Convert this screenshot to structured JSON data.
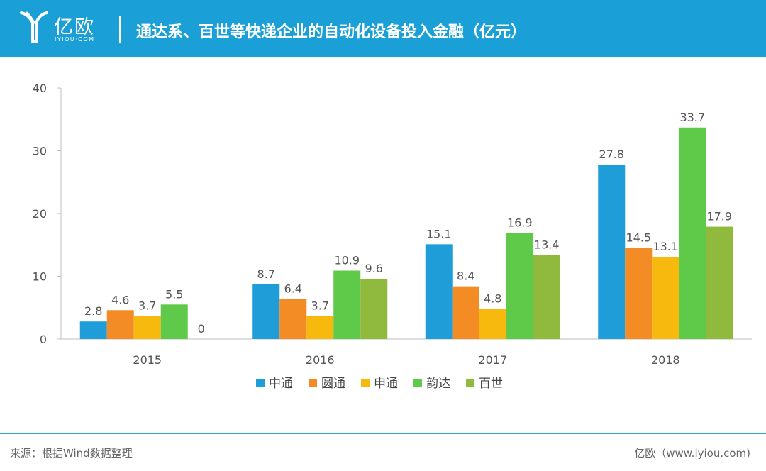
{
  "header": {
    "logo_text": "亿欧",
    "logo_subtext": "IYIOU·COM",
    "title": "通达系、百世等快递企业的自动化设备投入金融（亿元）"
  },
  "footer": {
    "source": "来源：根据Wind数据整理",
    "credit": "亿欧（www.iyiou.com)"
  },
  "colors": {
    "header_bg": "#1a9fd6",
    "series": [
      "#1e9dd8",
      "#f48c25",
      "#f7b90e",
      "#5fc94a",
      "#8fba3d"
    ]
  },
  "chart_data": {
    "type": "bar",
    "categories": [
      "2015",
      "2016",
      "2017",
      "2018"
    ],
    "series": [
      {
        "name": "中通",
        "values": [
          2.8,
          8.7,
          15.1,
          27.8
        ]
      },
      {
        "name": "圆通",
        "values": [
          4.6,
          6.4,
          8.4,
          14.5
        ]
      },
      {
        "name": "申通",
        "values": [
          3.7,
          3.7,
          4.8,
          13.1
        ]
      },
      {
        "name": "韵达",
        "values": [
          5.5,
          10.9,
          16.9,
          33.7
        ]
      },
      {
        "name": "百世",
        "values": [
          0,
          9.6,
          13.4,
          17.9
        ]
      }
    ],
    "ylim": [
      0,
      40
    ],
    "yticks": [
      0,
      10,
      20,
      30,
      40
    ],
    "grid": false,
    "legend_position": "bottom"
  }
}
